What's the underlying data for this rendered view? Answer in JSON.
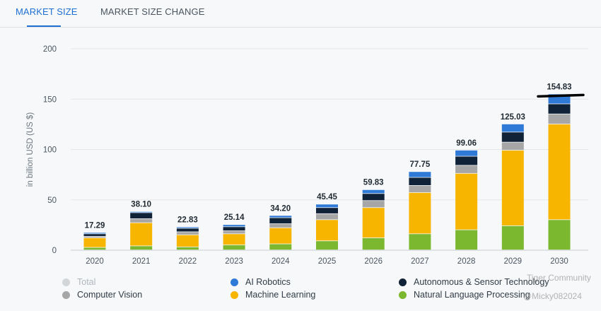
{
  "tabs": [
    {
      "label": "MARKET SIZE",
      "active": true
    },
    {
      "label": "MARKET SIZE CHANGE",
      "active": false
    }
  ],
  "watermark": {
    "community": "Tiger Community",
    "handle": "@Micky082024"
  },
  "chart_data": {
    "type": "bar",
    "stacked": true,
    "ylabel": "in billion USD (US $)",
    "ylim": [
      0,
      200
    ],
    "yticks": [
      0,
      50,
      100,
      150,
      200
    ],
    "grid": true,
    "legend_position": "bottom",
    "categories": [
      "2020",
      "2021",
      "2022",
      "2023",
      "2024",
      "2025",
      "2026",
      "2027",
      "2028",
      "2029",
      "2030"
    ],
    "totals": [
      17.29,
      38.1,
      22.83,
      25.14,
      34.2,
      45.45,
      59.83,
      77.75,
      99.06,
      125.03,
      154.83
    ],
    "total_labels": [
      "17.29",
      "38.10",
      "22.83",
      "25.14",
      "34.20",
      "45.45",
      "59.83",
      "77.75",
      "99.06",
      "125.03",
      "154.83"
    ],
    "series": [
      {
        "name": "Natural Language Processing",
        "color": "#7cb82f",
        "values": [
          2.5,
          4.0,
          3.0,
          5.0,
          6.0,
          9.0,
          12.0,
          16.0,
          20.0,
          24.0,
          30.0
        ]
      },
      {
        "name": "Machine Learning",
        "color": "#f7b500",
        "values": [
          9.5,
          23.0,
          12.0,
          11.0,
          16.0,
          21.0,
          30.0,
          41.0,
          56.0,
          75.0,
          95.0
        ]
      },
      {
        "name": "Computer Vision",
        "color": "#a6a6a6",
        "values": [
          1.5,
          4.0,
          3.0,
          3.0,
          4.0,
          6.0,
          7.0,
          7.0,
          8.0,
          8.0,
          10.0
        ]
      },
      {
        "name": "Autonomous & Sensor Technology",
        "color": "#0f2238",
        "values": [
          2.5,
          6.0,
          3.5,
          4.0,
          6.0,
          6.0,
          7.0,
          8.0,
          9.0,
          10.0,
          10.0
        ]
      },
      {
        "name": "AI Robotics",
        "color": "#2f7ad6",
        "values": [
          1.29,
          1.1,
          1.33,
          2.14,
          2.2,
          3.45,
          3.83,
          5.75,
          6.06,
          8.03,
          9.83
        ]
      }
    ],
    "legend": [
      {
        "name": "Total",
        "color": "#d3d6d9",
        "muted": true
      },
      {
        "name": "AI Robotics",
        "color": "#2f7ad6",
        "muted": false
      },
      {
        "name": "Autonomous & Sensor Technology",
        "color": "#0f2238",
        "muted": false
      },
      {
        "name": "Computer Vision",
        "color": "#a6a6a6",
        "muted": false
      },
      {
        "name": "Machine Learning",
        "color": "#f7b500",
        "muted": false
      },
      {
        "name": "Natural Language Processing",
        "color": "#7cb82f",
        "muted": false
      }
    ]
  }
}
